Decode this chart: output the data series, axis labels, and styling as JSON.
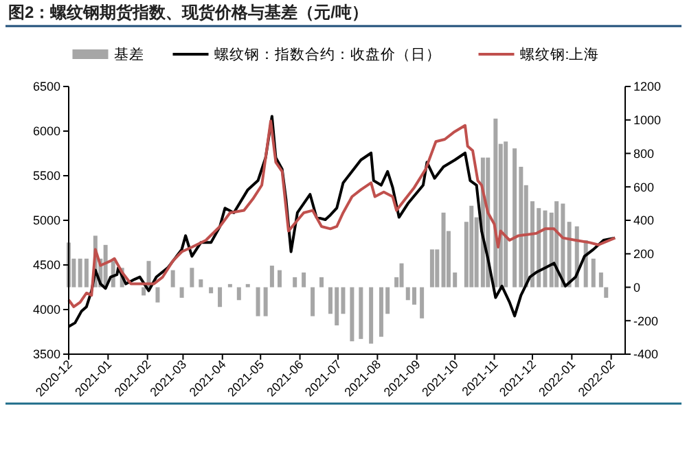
{
  "chart_data": {
    "type": "line",
    "title": "图2：螺纹钢期货指数、现货价格与基差（元/吨）",
    "legend": "top",
    "xlim": [
      "2020-12-01",
      "2022-02-12"
    ],
    "xticks": [
      "2020-12",
      "2021-01",
      "2021-02",
      "2021-03",
      "2021-04",
      "2021-05",
      "2021-06",
      "2021-07",
      "2021-08",
      "2021-09",
      "2021-10",
      "2021-11",
      "2021-12",
      "2022-01",
      "2022-02"
    ],
    "ylim": [
      3500,
      6500
    ],
    "yticks": [
      3500,
      4000,
      4500,
      5000,
      5500,
      6000,
      6500
    ],
    "y2lim": [
      -400,
      1200
    ],
    "y2ticks": [
      -400,
      -200,
      0,
      200,
      400,
      600,
      800,
      1000,
      1200
    ],
    "series": [
      {
        "name": "基差",
        "type": "bar",
        "axis": "y2",
        "color": "#a6a6a6",
        "x": [
          "2020-12-01",
          "2020-12-05",
          "2020-12-10",
          "2020-12-15",
          "2020-12-22",
          "2020-12-26",
          "2020-12-30",
          "2021-01-05",
          "2021-01-12",
          "2021-01-29",
          "2021-02-02",
          "2021-02-09",
          "2021-02-21",
          "2021-02-28",
          "2021-03-08",
          "2021-03-15",
          "2021-03-23",
          "2021-03-30",
          "2021-04-07",
          "2021-04-14",
          "2021-04-21",
          "2021-04-29",
          "2021-05-05",
          "2021-05-10",
          "2021-05-16",
          "2021-05-28",
          "2021-06-04",
          "2021-06-11",
          "2021-06-18",
          "2021-06-25",
          "2021-06-30",
          "2021-07-05",
          "2021-07-12",
          "2021-07-19",
          "2021-07-27",
          "2021-08-04",
          "2021-08-09",
          "2021-08-16",
          "2021-08-20",
          "2021-08-25",
          "2021-08-30",
          "2021-09-05",
          "2021-09-13",
          "2021-09-17",
          "2021-09-22",
          "2021-09-26",
          "2021-10-01",
          "2021-10-10",
          "2021-10-14",
          "2021-10-18",
          "2021-10-23",
          "2021-10-27",
          "2021-11-02",
          "2021-11-06",
          "2021-11-10",
          "2021-11-17",
          "2021-11-22",
          "2021-11-26",
          "2021-12-01",
          "2021-12-06",
          "2021-12-11",
          "2021-12-16",
          "2021-12-20",
          "2021-12-25",
          "2021-12-30",
          "2022-01-05",
          "2022-01-12",
          "2022-01-18",
          "2022-01-24",
          "2022-01-28"
        ],
        "values": [
          267,
          171,
          171,
          171,
          308,
          171,
          253,
          157,
          116,
          -49,
          157,
          -91,
          102,
          -63,
          116,
          47,
          -36,
          -118,
          19,
          -77,
          19,
          -173,
          -173,
          129,
          102,
          60,
          88,
          -173,
          60,
          -159,
          -228,
          -159,
          -323,
          -309,
          -337,
          -296,
          -159,
          60,
          143,
          -77,
          -104,
          -186,
          226,
          226,
          446,
          336,
          88,
          391,
          487,
          418,
          775,
          775,
          1008,
          857,
          871,
          830,
          720,
          610,
          514,
          473,
          459,
          446,
          514,
          500,
          391,
          364,
          281,
          171,
          88,
          -63
        ]
      },
      {
        "name": "螺纹钢：指数合约：收盘价（日）",
        "color": "#000000",
        "x": [
          "2020-12-01",
          "2020-12-06",
          "2020-12-11",
          "2020-12-15",
          "2020-12-19",
          "2020-12-22",
          "2020-12-26",
          "2020-12-30",
          "2021-01-03",
          "2021-01-08",
          "2021-01-09",
          "2021-01-15",
          "2021-01-22",
          "2021-01-26",
          "2021-02-02",
          "2021-02-08",
          "2021-02-17",
          "2021-02-28",
          "2021-03-03",
          "2021-03-08",
          "2021-03-15",
          "2021-03-23",
          "2021-03-30",
          "2021-04-03",
          "2021-04-10",
          "2021-04-21",
          "2021-04-29",
          "2021-05-05",
          "2021-05-10",
          "2021-05-13",
          "2021-05-18",
          "2021-05-21",
          "2021-05-25",
          "2021-05-30",
          "2021-06-09",
          "2021-06-14",
          "2021-06-21",
          "2021-06-25",
          "2021-06-30",
          "2021-07-05",
          "2021-07-12",
          "2021-07-19",
          "2021-07-27",
          "2021-07-29",
          "2021-08-04",
          "2021-08-09",
          "2021-08-13",
          "2021-08-18",
          "2021-08-25",
          "2021-09-06",
          "2021-09-09",
          "2021-09-15",
          "2021-09-22",
          "2021-10-01",
          "2021-10-09",
          "2021-10-13",
          "2021-10-18",
          "2021-10-22",
          "2021-10-27",
          "2021-11-02",
          "2021-11-07",
          "2021-11-13",
          "2021-11-17",
          "2021-11-22",
          "2021-11-29",
          "2021-12-04",
          "2021-12-11",
          "2021-12-18",
          "2021-12-27",
          "2022-01-04",
          "2022-01-11",
          "2022-01-18",
          "2022-01-26",
          "2022-02-04"
        ],
        "values": [
          3810,
          3851,
          3980,
          4031,
          4211,
          4442,
          4288,
          4237,
          4365,
          4391,
          4468,
          4288,
          4340,
          4365,
          4211,
          4365,
          4468,
          4674,
          4828,
          4597,
          4751,
          4751,
          4931,
          5137,
          5085,
          5343,
          5446,
          5703,
          6166,
          5703,
          5574,
          5240,
          4648,
          5085,
          5291,
          5034,
          5008,
          5060,
          5137,
          5420,
          5548,
          5677,
          5754,
          5445,
          5394,
          5548,
          5368,
          5034,
          5188,
          5394,
          5651,
          5471,
          5600,
          5677,
          5754,
          5445,
          5394,
          4880,
          4571,
          4134,
          4263,
          4082,
          3928,
          4160,
          4365,
          4417,
          4468,
          4520,
          4263,
          4365,
          4597,
          4674,
          4777,
          4803
        ]
      },
      {
        "name": "螺纹钢:上海",
        "color": "#c0504d",
        "x": [
          "2020-12-01",
          "2020-12-05",
          "2020-12-10",
          "2020-12-15",
          "2020-12-19",
          "2020-12-22",
          "2020-12-26",
          "2021-01-03",
          "2021-01-06",
          "2021-01-12",
          "2021-01-19",
          "2021-01-26",
          "2021-02-06",
          "2021-02-13",
          "2021-02-21",
          "2021-02-28",
          "2021-03-08",
          "2021-03-19",
          "2021-03-30",
          "2021-04-07",
          "2021-04-18",
          "2021-04-25",
          "2021-05-02",
          "2021-05-09",
          "2021-05-13",
          "2021-05-18",
          "2021-05-23",
          "2021-05-29",
          "2021-06-04",
          "2021-06-11",
          "2021-06-18",
          "2021-06-25",
          "2021-06-30",
          "2021-07-05",
          "2021-07-12",
          "2021-07-19",
          "2021-07-27",
          "2021-07-30",
          "2021-08-06",
          "2021-08-13",
          "2021-08-16",
          "2021-08-23",
          "2021-08-30",
          "2021-09-08",
          "2021-09-16",
          "2021-09-23",
          "2021-09-30",
          "2021-10-09",
          "2021-10-11",
          "2021-10-15",
          "2021-10-19",
          "2021-10-22",
          "2021-10-27",
          "2021-11-01",
          "2021-11-04",
          "2021-11-06",
          "2021-11-13",
          "2021-11-20",
          "2021-12-04",
          "2021-12-11",
          "2021-12-18",
          "2021-12-25",
          "2022-01-04",
          "2022-01-15",
          "2022-01-22",
          "2022-02-04"
        ],
        "values": [
          4108,
          4031,
          4082,
          4185,
          4160,
          4674,
          4494,
          4545,
          4571,
          4417,
          4288,
          4288,
          4288,
          4365,
          4545,
          4648,
          4700,
          4777,
          4931,
          5085,
          5111,
          5240,
          5394,
          6114,
          5651,
          5548,
          4880,
          4983,
          5085,
          5111,
          4931,
          4905,
          4931,
          5085,
          5265,
          5343,
          5420,
          5265,
          5317,
          5265,
          5111,
          5240,
          5368,
          5574,
          5883,
          5908,
          5986,
          6063,
          5831,
          5780,
          5445,
          5394,
          5085,
          4957,
          4700,
          4880,
          4777,
          4828,
          4854,
          4905,
          4905,
          4803,
          4777,
          4751,
          4725,
          4803
        ]
      }
    ]
  }
}
